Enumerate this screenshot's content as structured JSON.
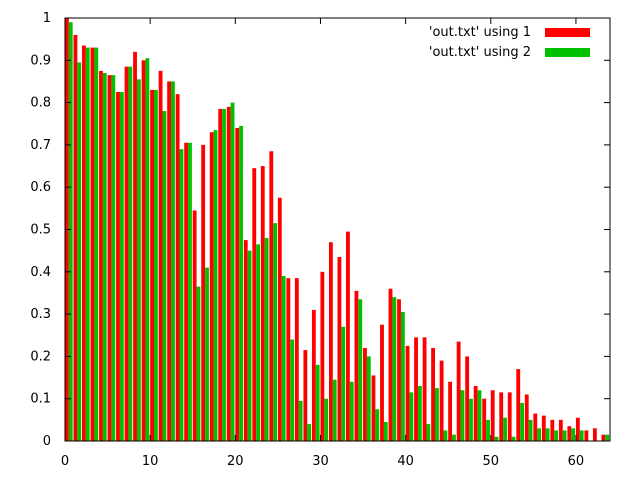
{
  "chart_data": {
    "type": "bar",
    "grid": false,
    "legend_placement": "top-right",
    "xlim": [
      0,
      64
    ],
    "ylim": [
      0,
      1
    ],
    "xticks": [
      0,
      10,
      20,
      30,
      40,
      50,
      60
    ],
    "yticks": [
      0,
      0.1,
      0.2,
      0.3,
      0.4,
      0.5,
      0.6,
      0.7,
      0.8,
      0.9,
      1
    ],
    "x": [
      0,
      1,
      2,
      3,
      4,
      5,
      6,
      7,
      8,
      9,
      10,
      11,
      12,
      13,
      14,
      15,
      16,
      17,
      18,
      19,
      20,
      21,
      22,
      23,
      24,
      25,
      26,
      27,
      28,
      29,
      30,
      31,
      32,
      33,
      34,
      35,
      36,
      37,
      38,
      39,
      40,
      41,
      42,
      43,
      44,
      45,
      46,
      47,
      48,
      49,
      50,
      51,
      52,
      53,
      54,
      55,
      56,
      57,
      58,
      59,
      60,
      61,
      62,
      63
    ],
    "series": [
      {
        "name": "'out.txt' using 1",
        "color": "#ff0000",
        "values": [
          1.0,
          0.96,
          0.935,
          0.93,
          0.875,
          0.865,
          0.825,
          0.885,
          0.92,
          0.9,
          0.83,
          0.875,
          0.85,
          0.82,
          0.705,
          0.545,
          0.7,
          0.73,
          0.785,
          0.79,
          0.74,
          0.475,
          0.645,
          0.65,
          0.685,
          0.575,
          0.385,
          0.385,
          0.215,
          0.31,
          0.4,
          0.47,
          0.435,
          0.495,
          0.355,
          0.22,
          0.155,
          0.275,
          0.36,
          0.335,
          0.225,
          0.245,
          0.245,
          0.22,
          0.19,
          0.14,
          0.235,
          0.2,
          0.13,
          0.1,
          0.12,
          0.115,
          0.115,
          0.17,
          0.11,
          0.065,
          0.06,
          0.05,
          0.05,
          0.035,
          0.055,
          0.025,
          0.03,
          0.015
        ]
      },
      {
        "name": "'out.txt' using 2",
        "color": "#00c000",
        "values": [
          0.99,
          0.895,
          0.93,
          0.93,
          0.87,
          0.865,
          0.825,
          0.885,
          0.855,
          0.905,
          0.83,
          0.78,
          0.85,
          0.69,
          0.705,
          0.365,
          0.41,
          0.735,
          0.785,
          0.8,
          0.745,
          0.45,
          0.465,
          0.48,
          0.515,
          0.39,
          0.24,
          0.095,
          0.04,
          0.18,
          0.1,
          0.145,
          0.27,
          0.14,
          0.335,
          0.2,
          0.075,
          0.045,
          0.34,
          0.305,
          0.115,
          0.13,
          0.04,
          0.125,
          0.025,
          0.015,
          0.12,
          0.1,
          0.12,
          0.05,
          0.01,
          0.055,
          0.01,
          0.09,
          0.05,
          0.03,
          0.03,
          0.025,
          0.025,
          0.03,
          0.025,
          0.0,
          0.0,
          0.015
        ]
      }
    ]
  }
}
